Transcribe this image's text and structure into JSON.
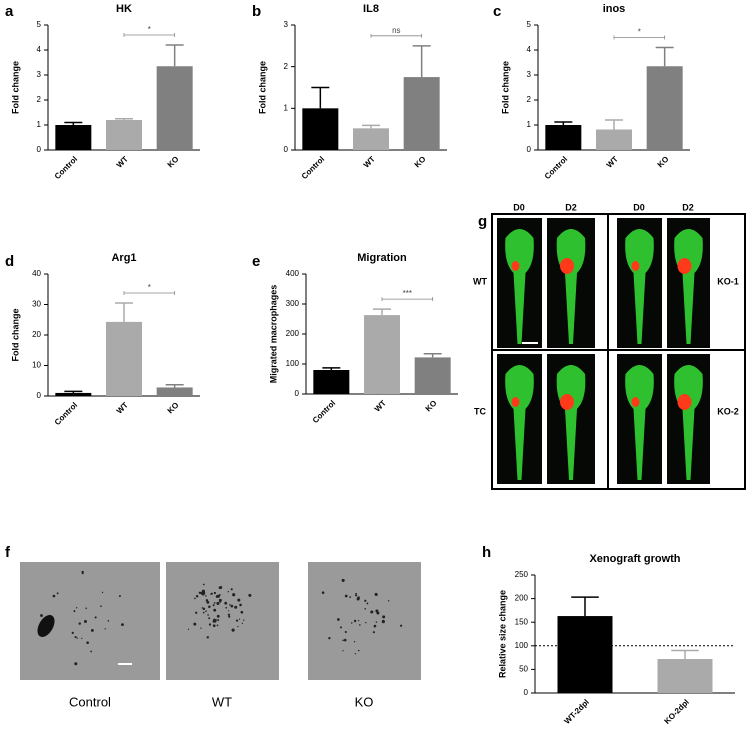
{
  "chart_data": [
    {
      "type": "bar",
      "panel": "a",
      "title": "HK",
      "y_label": "Fold change",
      "categories": [
        "Control",
        "WT",
        "KO"
      ],
      "values": [
        1.0,
        1.2,
        3.35
      ],
      "errors": [
        0.1,
        0.05,
        0.85
      ],
      "colors": [
        "#000000",
        "#aaaaaa",
        "#808080"
      ],
      "ylim": [
        0,
        5
      ],
      "yticks": [
        0,
        1,
        2,
        3,
        4,
        5
      ],
      "significance": {
        "label": "*",
        "between": [
          "WT",
          "KO"
        ]
      }
    },
    {
      "type": "bar",
      "panel": "b",
      "title": "IL8",
      "y_label": "Fold change",
      "categories": [
        "Control",
        "WT",
        "KO"
      ],
      "values": [
        1.0,
        0.52,
        1.75
      ],
      "errors": [
        0.5,
        0.07,
        0.75
      ],
      "colors": [
        "#000000",
        "#aaaaaa",
        "#808080"
      ],
      "ylim": [
        0,
        3
      ],
      "yticks": [
        0,
        1,
        2,
        3
      ],
      "significance": {
        "label": "ns",
        "between": [
          "WT",
          "KO"
        ]
      }
    },
    {
      "type": "bar",
      "panel": "c",
      "title": "inos",
      "y_label": "Fold change",
      "categories": [
        "Control",
        "WT",
        "KO"
      ],
      "values": [
        1.0,
        0.82,
        3.35
      ],
      "errors": [
        0.12,
        0.38,
        0.75
      ],
      "colors": [
        "#000000",
        "#aaaaaa",
        "#808080"
      ],
      "ylim": [
        0,
        5
      ],
      "yticks": [
        0,
        1,
        2,
        3,
        4,
        5
      ],
      "significance": {
        "label": "*",
        "between": [
          "WT",
          "KO"
        ]
      }
    },
    {
      "type": "bar",
      "panel": "d",
      "title": "Arg1",
      "y_label": "Fold change",
      "categories": [
        "Control",
        "WT",
        "KO"
      ],
      "values": [
        1.0,
        24.3,
        2.8
      ],
      "errors": [
        0.5,
        6.2,
        0.9
      ],
      "colors": [
        "#000000",
        "#aaaaaa",
        "#808080"
      ],
      "ylim": [
        0,
        40
      ],
      "yticks": [
        0,
        10,
        20,
        30,
        40
      ],
      "significance": {
        "label": "*",
        "between": [
          "WT",
          "KO"
        ]
      }
    },
    {
      "type": "bar",
      "panel": "e",
      "title": "Migration",
      "y_label": "Migrated macrophages",
      "categories": [
        "Control",
        "WT",
        "KO"
      ],
      "values": [
        80,
        263,
        122
      ],
      "errors": [
        7,
        20,
        12
      ],
      "colors": [
        "#000000",
        "#aaaaaa",
        "#808080"
      ],
      "ylim": [
        0,
        400
      ],
      "yticks": [
        0,
        100,
        200,
        300,
        400
      ],
      "significance": {
        "label": "***",
        "between": [
          "WT",
          "KO"
        ]
      }
    },
    {
      "type": "bar",
      "panel": "h",
      "title": "Xenograft growth",
      "y_label": "Relative size change",
      "categories": [
        "WT-2dpl",
        "KO-2dpl"
      ],
      "values": [
        163,
        72
      ],
      "errors": [
        40,
        18
      ],
      "colors": [
        "#000000",
        "#aaaaaa"
      ],
      "ylim": [
        0,
        250
      ],
      "yticks": [
        0,
        50,
        100,
        150,
        200,
        250
      ],
      "ref_line": 100
    }
  ],
  "panel_f": {
    "panel": "f",
    "captions": [
      "Control",
      "WT",
      "KO"
    ]
  },
  "panel_g": {
    "panel": "g",
    "columns": [
      "D0",
      "D2",
      "D0",
      "D2"
    ],
    "rows_left": [
      "WT",
      "TC"
    ],
    "rows_right": [
      "KO-1",
      "KO-2"
    ]
  }
}
